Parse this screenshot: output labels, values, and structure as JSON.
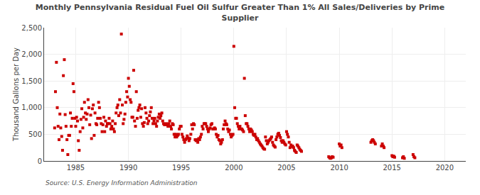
{
  "chart_data": {
    "type": "scatter",
    "title": "Monthly Pennsylvania Residual Fuel Oil Sulfur Greater Than 1% All Sales/Deliveries by Prime\nSupplier",
    "ylabel": "Thousand Gallons per Day",
    "annotations": [
      "Source: U.S. Energy Information Administration"
    ],
    "color": "#cc0000",
    "marker": "square",
    "grid": true,
    "xlim": [
      1982,
      2022
    ],
    "ylim": [
      0,
      2500
    ],
    "xticks": [
      1985,
      1990,
      1995,
      2000,
      2005,
      2010,
      2015,
      2020
    ],
    "yticks": [
      0,
      500,
      {
        "value": 1000,
        "label": "1,000"
      },
      {
        "value": 1500,
        "label": "1,500"
      },
      {
        "value": 2000,
        "label": "2,000"
      },
      {
        "value": 2500,
        "label": "2,500"
      }
    ],
    "x": [
      1983.0,
      1983.08,
      1983.17,
      1983.25,
      1983.33,
      1983.42,
      1983.5,
      1983.58,
      1983.67,
      1983.75,
      1983.83,
      1983.92,
      1984.0,
      1984.08,
      1984.17,
      1984.25,
      1984.33,
      1984.42,
      1984.5,
      1984.58,
      1984.67,
      1984.75,
      1984.83,
      1984.92,
      1985.0,
      1985.08,
      1985.17,
      1985.25,
      1985.33,
      1985.42,
      1985.5,
      1985.58,
      1985.67,
      1985.75,
      1985.83,
      1985.92,
      1986.0,
      1986.08,
      1986.17,
      1986.25,
      1986.33,
      1986.42,
      1986.5,
      1986.58,
      1986.67,
      1986.75,
      1986.83,
      1986.92,
      1987.0,
      1987.08,
      1987.17,
      1987.25,
      1987.33,
      1987.42,
      1987.5,
      1987.58,
      1987.67,
      1987.75,
      1987.83,
      1987.92,
      1988.0,
      1988.08,
      1988.17,
      1988.25,
      1988.33,
      1988.42,
      1988.5,
      1988.58,
      1988.67,
      1988.75,
      1988.83,
      1988.92,
      1989.0,
      1989.08,
      1989.17,
      1989.25,
      1989.33,
      1989.42,
      1989.5,
      1989.58,
      1989.67,
      1989.75,
      1989.83,
      1989.92,
      1990.0,
      1990.08,
      1990.17,
      1990.25,
      1990.33,
      1990.42,
      1990.5,
      1990.58,
      1990.67,
      1990.75,
      1990.83,
      1990.92,
      1991.0,
      1991.08,
      1991.17,
      1991.25,
      1991.33,
      1991.42,
      1991.5,
      1991.58,
      1991.67,
      1991.75,
      1991.83,
      1991.92,
      1992.0,
      1992.08,
      1992.17,
      1992.25,
      1992.33,
      1992.42,
      1992.5,
      1992.58,
      1992.67,
      1992.75,
      1992.83,
      1992.92,
      1993.0,
      1993.08,
      1993.17,
      1993.25,
      1993.33,
      1993.42,
      1993.5,
      1993.58,
      1993.67,
      1993.75,
      1993.83,
      1993.92,
      1994.0,
      1994.08,
      1994.17,
      1994.25,
      1994.33,
      1994.42,
      1994.5,
      1994.58,
      1994.67,
      1994.75,
      1994.83,
      1994.92,
      1995.0,
      1995.08,
      1995.17,
      1995.25,
      1995.33,
      1995.42,
      1995.5,
      1995.58,
      1995.67,
      1995.75,
      1995.83,
      1995.92,
      1996.0,
      1996.08,
      1996.17,
      1996.25,
      1996.33,
      1996.42,
      1996.5,
      1996.58,
      1996.67,
      1996.75,
      1996.83,
      1996.92,
      1997.0,
      1997.08,
      1997.17,
      1997.25,
      1997.33,
      1997.42,
      1997.5,
      1997.58,
      1997.67,
      1997.75,
      1997.83,
      1997.92,
      1998.0,
      1998.08,
      1998.17,
      1998.25,
      1998.33,
      1998.42,
      1998.5,
      1998.58,
      1998.67,
      1998.75,
      1998.83,
      1998.92,
      1999.0,
      1999.08,
      1999.17,
      1999.25,
      1999.33,
      1999.42,
      1999.5,
      1999.58,
      1999.67,
      1999.75,
      1999.83,
      1999.92,
      2000.0,
      2000.08,
      2000.17,
      2000.25,
      2000.33,
      2000.42,
      2000.5,
      2000.58,
      2000.67,
      2000.75,
      2000.83,
      2000.92,
      2001.0,
      2001.08,
      2001.17,
      2001.25,
      2001.33,
      2001.42,
      2001.5,
      2001.58,
      2001.67,
      2001.75,
      2001.83,
      2001.92,
      2002.0,
      2002.08,
      2002.17,
      2002.25,
      2002.33,
      2002.42,
      2002.5,
      2002.58,
      2002.67,
      2002.75,
      2002.83,
      2002.92,
      2003.0,
      2003.08,
      2003.17,
      2003.25,
      2003.33,
      2003.42,
      2003.5,
      2003.58,
      2003.67,
      2003.75,
      2003.83,
      2003.92,
      2004.0,
      2004.08,
      2004.17,
      2004.25,
      2004.33,
      2004.42,
      2004.5,
      2004.58,
      2004.67,
      2004.75,
      2004.83,
      2004.92,
      2005.0,
      2005.08,
      2005.17,
      2005.25,
      2005.33,
      2005.42,
      2005.5,
      2005.58,
      2005.67,
      2005.75,
      2005.83,
      2005.92,
      2006.0,
      2006.08,
      2006.17,
      2006.25,
      2006.33,
      2006.42,
      2009.0,
      2009.08,
      2009.17,
      2009.25,
      2009.33,
      2009.42,
      2010.0,
      2010.08,
      2010.17,
      2010.25,
      2013.0,
      2013.08,
      2013.17,
      2013.25,
      2013.33,
      2013.42,
      2014.0,
      2014.08,
      2014.17,
      2014.25,
      2015.0,
      2015.08,
      2015.17,
      2015.25,
      2016.0,
      2016.08,
      2016.17,
      2017.0,
      2017.08,
      2017.17
    ],
    "values": [
      620,
      1300,
      1850,
      1000,
      650,
      400,
      880,
      620,
      460,
      200,
      1600,
      1900,
      870,
      650,
      400,
      120,
      480,
      480,
      900,
      650,
      800,
      1450,
      1300,
      800,
      650,
      820,
      750,
      380,
      200,
      550,
      780,
      980,
      620,
      820,
      1100,
      900,
      780,
      880,
      1150,
      1000,
      680,
      860,
      420,
      980,
      1050,
      480,
      900,
      700,
      680,
      800,
      1100,
      1000,
      800,
      700,
      550,
      680,
      820,
      550,
      750,
      650,
      700,
      700,
      800,
      700,
      600,
      650,
      750,
      600,
      550,
      700,
      900,
      1000,
      1050,
      850,
      1150,
      900,
      2380,
      1050,
      700,
      780,
      880,
      1100,
      1300,
      1200,
      1550,
      1400,
      1150,
      1100,
      820,
      820,
      1700,
      750,
      650,
      1300,
      800,
      950,
      1000,
      1050,
      820,
      980,
      700,
      650,
      720,
      1000,
      900,
      800,
      700,
      750,
      850,
      920,
      1000,
      800,
      700,
      750,
      800,
      700,
      650,
      750,
      820,
      880,
      800,
      850,
      900,
      750,
      700,
      680,
      680,
      700,
      680,
      650,
      700,
      750,
      650,
      600,
      700,
      680,
      500,
      450,
      500,
      450,
      480,
      500,
      600,
      650,
      650,
      500,
      450,
      400,
      350,
      400,
      420,
      470,
      430,
      380,
      420,
      500,
      680,
      600,
      700,
      680,
      400,
      380,
      400,
      350,
      420,
      400,
      450,
      500,
      650,
      600,
      700,
      700,
      700,
      650,
      600,
      550,
      600,
      620,
      680,
      700,
      600,
      600,
      620,
      600,
      500,
      450,
      480,
      400,
      380,
      320,
      350,
      400,
      600,
      680,
      750,
      700,
      680,
      600,
      550,
      580,
      500,
      450,
      480,
      500,
      2150,
      1000,
      800,
      800,
      700,
      650,
      600,
      650,
      600,
      600,
      580,
      550,
      1550,
      850,
      700,
      700,
      650,
      600,
      550,
      600,
      580,
      550,
      500,
      480,
      500,
      450,
      400,
      420,
      380,
      350,
      320,
      300,
      280,
      250,
      230,
      220,
      450,
      380,
      320,
      350,
      380,
      400,
      420,
      450,
      350,
      300,
      280,
      260,
      400,
      450,
      500,
      520,
      480,
      440,
      380,
      350,
      380,
      350,
      320,
      300,
      550,
      500,
      450,
      350,
      250,
      300,
      270,
      280,
      250,
      200,
      180,
      160,
      300,
      280,
      250,
      220,
      200,
      180,
      80,
      60,
      50,
      60,
      80,
      70,
      320,
      280,
      300,
      250,
      350,
      380,
      400,
      380,
      350,
      320,
      280,
      320,
      280,
      250,
      100,
      80,
      90,
      70,
      60,
      80,
      50,
      120,
      80,
      60
    ]
  }
}
